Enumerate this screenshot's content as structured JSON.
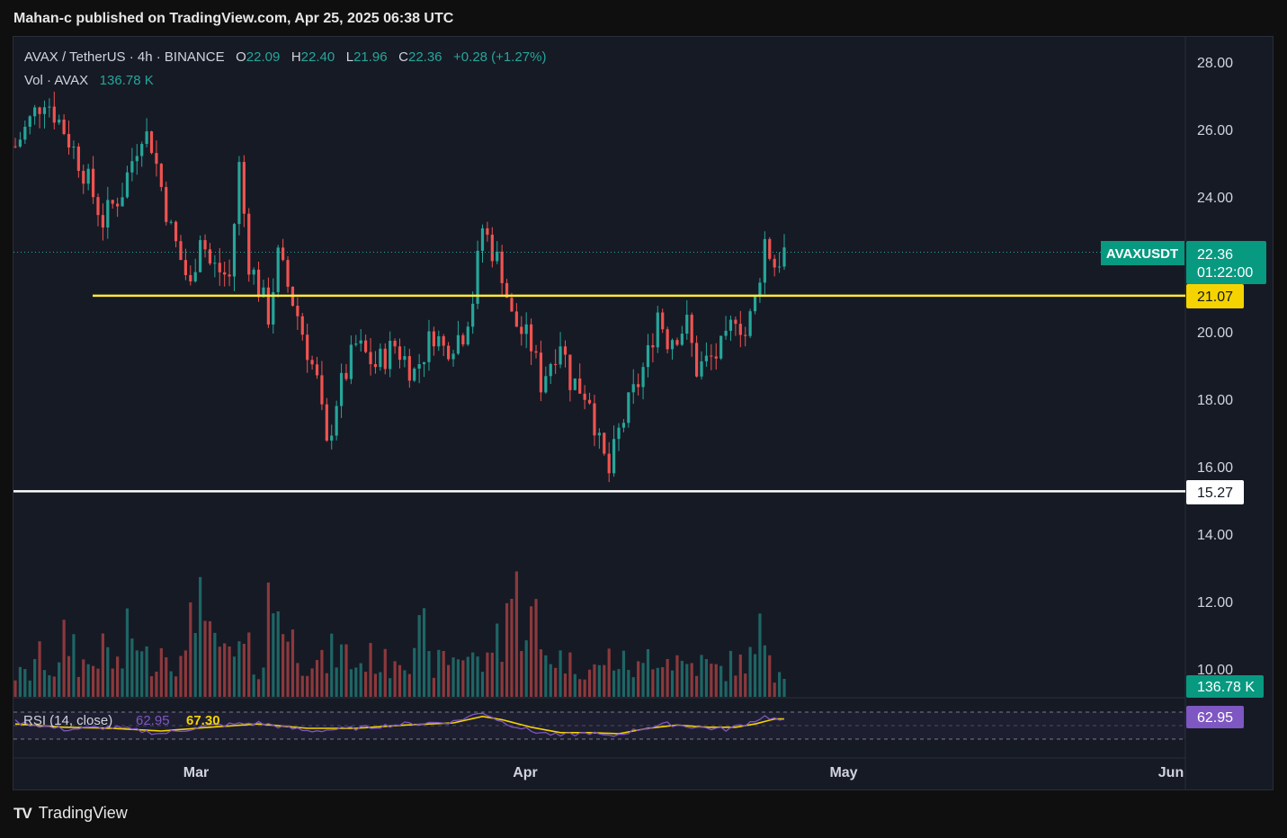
{
  "header": {
    "publish_line": "Mahan-c published on TradingView.com, Apr 25, 2025 06:38 UTC"
  },
  "legend": {
    "symbol": "AVAX / TetherUS · 4h · BINANCE",
    "o_label": "O",
    "o_value": "22.09",
    "h_label": "H",
    "h_value": "22.40",
    "l_label": "L",
    "l_value": "21.96",
    "c_label": "C",
    "c_value": "22.36",
    "change": "+0.28 (+1.27%)",
    "vol_label": "Vol · AVAX",
    "vol_value": "136.78 K"
  },
  "footer": {
    "brand": "TradingView",
    "logo": "TV"
  },
  "colors": {
    "up": "#26a69a",
    "down": "#ef5350",
    "rsi": "#7e57c2",
    "rsi_ma": "#f5d300",
    "support_yellow": "#ffeb3b",
    "support_white": "#ffffff"
  },
  "chart_data": {
    "type": "candlestick",
    "symbol": "AVAXUSDT",
    "timeframe": "4h",
    "y_ticks": [
      28,
      26,
      24,
      22,
      20,
      18,
      16,
      14,
      12,
      10
    ],
    "y_tick_labels": [
      "28.00",
      "26.00",
      "24.00",
      "22.00",
      "20.00",
      "18.00",
      "16.00",
      "14.00",
      "12.00",
      "10.00"
    ],
    "ylim": [
      9.2,
      28.5
    ],
    "x_tick_labels": [
      "Mar",
      "Apr",
      "May",
      "Jun"
    ],
    "price_path": [
      [
        0,
        25.5
      ],
      [
        6,
        27.0
      ],
      [
        10,
        26.0
      ],
      [
        14,
        24.8
      ],
      [
        18,
        23.3
      ],
      [
        22,
        24.2
      ],
      [
        26,
        26.0
      ],
      [
        28,
        25.6
      ],
      [
        32,
        23.0
      ],
      [
        36,
        21.3
      ],
      [
        38,
        23.0
      ],
      [
        40,
        22.0
      ],
      [
        44,
        21.6
      ],
      [
        46,
        24.9
      ],
      [
        48,
        22.1
      ],
      [
        52,
        20.5
      ],
      [
        54,
        22.2
      ],
      [
        58,
        20.5
      ],
      [
        62,
        18.5
      ],
      [
        64,
        16.5
      ],
      [
        66,
        18.0
      ],
      [
        70,
        19.6
      ],
      [
        74,
        19.0
      ],
      [
        78,
        19.6
      ],
      [
        82,
        18.8
      ],
      [
        86,
        20.0
      ],
      [
        88,
        19.5
      ],
      [
        92,
        20.0
      ],
      [
        94,
        21.0
      ],
      [
        96,
        23.1
      ],
      [
        100,
        21.8
      ],
      [
        102,
        20.4
      ],
      [
        106,
        19.6
      ],
      [
        108,
        18.5
      ],
      [
        112,
        19.8
      ],
      [
        114,
        18.6
      ],
      [
        118,
        18.1
      ],
      [
        120,
        16.6
      ],
      [
        122,
        15.8
      ],
      [
        124,
        17.0
      ],
      [
        126,
        17.8
      ],
      [
        128,
        18.5
      ],
      [
        130,
        19.3
      ],
      [
        132,
        20.6
      ],
      [
        134,
        19.8
      ],
      [
        138,
        20.2
      ],
      [
        140,
        18.9
      ],
      [
        144,
        19.3
      ],
      [
        146,
        19.6
      ],
      [
        148,
        20.6
      ],
      [
        150,
        19.9
      ],
      [
        152,
        20.9
      ],
      [
        154,
        22.7
      ],
      [
        156,
        22.0
      ],
      [
        158,
        22.36
      ]
    ],
    "volume_levels": [
      0.2,
      0.35,
      0.25,
      0.5,
      0.3,
      0.4,
      0.3,
      0.55,
      0.35,
      0.45,
      0.3,
      1.0,
      0.5,
      0.35,
      0.4,
      0.3,
      0.85,
      0.5,
      0.35,
      0.3,
      0.4,
      0.3,
      0.35,
      0.3,
      0.4,
      0.55,
      0.3,
      0.35,
      0.4,
      0.3,
      0.55,
      0.9,
      0.7,
      0.4,
      0.35,
      0.3,
      0.25,
      0.35,
      0.3,
      0.25,
      0.4,
      0.35,
      0.3,
      0.3,
      0.25,
      0.3,
      0.35,
      0.55,
      0.25
    ],
    "rsi_path": [
      [
        0,
        62
      ],
      [
        10,
        48
      ],
      [
        20,
        52
      ],
      [
        30,
        40
      ],
      [
        40,
        55
      ],
      [
        50,
        60
      ],
      [
        60,
        45
      ],
      [
        70,
        50
      ],
      [
        80,
        58
      ],
      [
        90,
        62
      ],
      [
        96,
        80
      ],
      [
        100,
        62
      ],
      [
        106,
        45
      ],
      [
        112,
        36
      ],
      [
        118,
        42
      ],
      [
        122,
        34
      ],
      [
        128,
        48
      ],
      [
        134,
        58
      ],
      [
        140,
        52
      ],
      [
        146,
        48
      ],
      [
        150,
        58
      ],
      [
        154,
        72
      ],
      [
        158,
        62.95
      ]
    ],
    "rsi_ma_path": [
      [
        0,
        58
      ],
      [
        10,
        52
      ],
      [
        20,
        50
      ],
      [
        30,
        45
      ],
      [
        40,
        52
      ],
      [
        50,
        58
      ],
      [
        60,
        50
      ],
      [
        70,
        50
      ],
      [
        80,
        56
      ],
      [
        90,
        60
      ],
      [
        96,
        72
      ],
      [
        100,
        66
      ],
      [
        106,
        52
      ],
      [
        112,
        42
      ],
      [
        118,
        42
      ],
      [
        124,
        40
      ],
      [
        130,
        50
      ],
      [
        136,
        56
      ],
      [
        142,
        52
      ],
      [
        148,
        52
      ],
      [
        152,
        58
      ],
      [
        156,
        67.3
      ],
      [
        158,
        67.3
      ]
    ],
    "current_price": 22.36,
    "support_yellow": 21.07,
    "support_white": 15.27,
    "labels": {
      "symbol_tag": "AVAXUSDT",
      "price_tag": "22.36",
      "countdown": "01:22:00",
      "yellow_tag": "21.07",
      "white_tag": "15.27",
      "vol_tag": "136.78 K",
      "rsi_legend": "RSI (14, close)",
      "rsi_value": "62.95",
      "rsi_ma_value": "67.30",
      "rsi_tag": "62.95"
    }
  }
}
